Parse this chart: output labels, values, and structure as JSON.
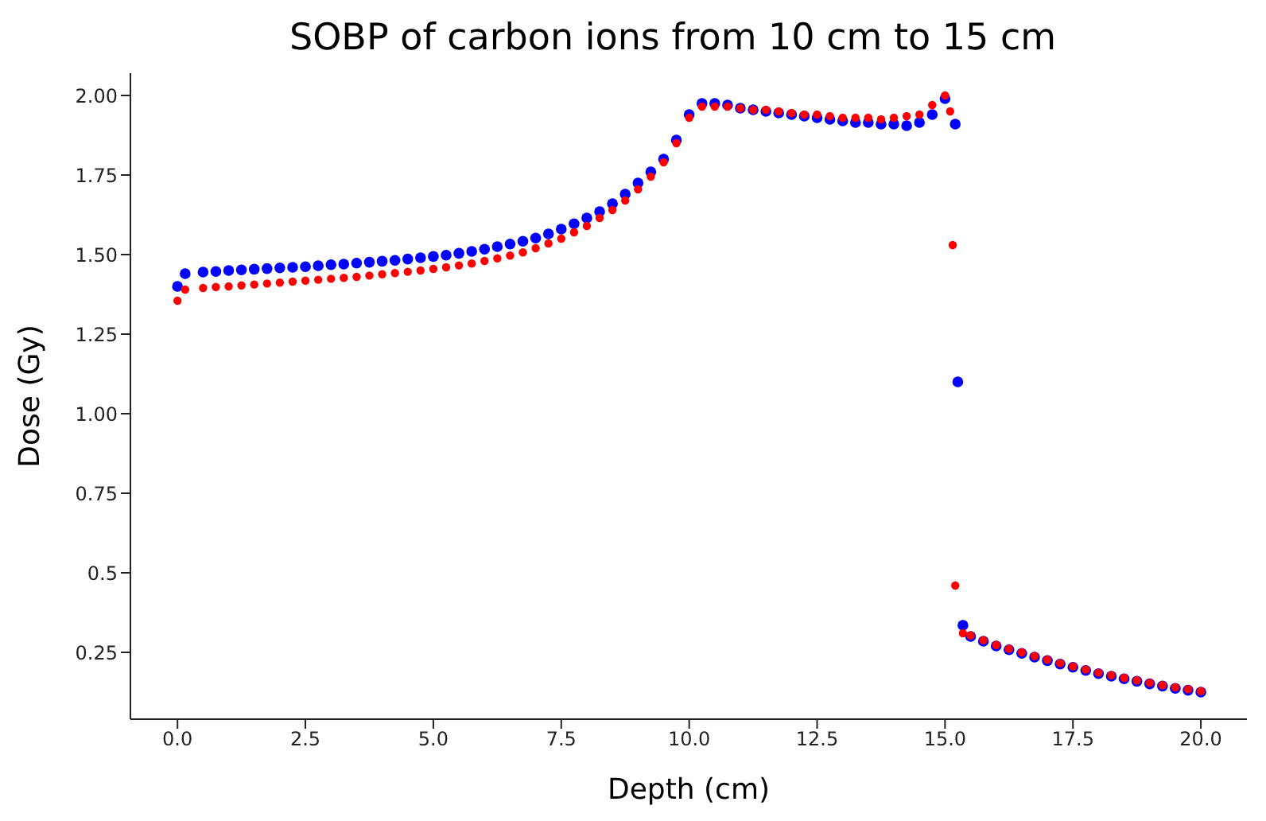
{
  "chart_data": {
    "type": "scatter",
    "title": "SOBP of carbon ions from 10 cm to 15 cm",
    "xlabel": "Depth (cm)",
    "ylabel": "Dose (Gy)",
    "xlim": [
      -0.92,
      20.9
    ],
    "ylim": [
      0.04,
      2.07
    ],
    "xticks": [
      {
        "value": 0,
        "label": "0.0"
      },
      {
        "value": 2.5,
        "label": "2.5"
      },
      {
        "value": 5,
        "label": "5.0"
      },
      {
        "value": 7.5,
        "label": "7.5"
      },
      {
        "value": 10,
        "label": "10.0"
      },
      {
        "value": 12.5,
        "label": "12.5"
      },
      {
        "value": 15,
        "label": "15.0"
      },
      {
        "value": 17.5,
        "label": "17.5"
      },
      {
        "value": 20,
        "label": "20.0"
      }
    ],
    "yticks": [
      0.25,
      0.5,
      0.75,
      {
        "value": 1,
        "label": "1.00"
      },
      1.25,
      {
        "value": 1.5,
        "label": "1.50"
      },
      1.75,
      {
        "value": 2,
        "label": "2.00"
      }
    ],
    "grid": false,
    "legend": false,
    "marker": "circle",
    "series": [
      {
        "color": "#0000ff",
        "x": [
          0,
          0.15,
          0.5,
          0.75,
          1,
          1.25,
          1.5,
          1.75,
          2,
          2.25,
          2.5,
          2.75,
          3,
          3.25,
          3.5,
          3.75,
          4,
          4.25,
          4.5,
          4.75,
          5,
          5.25,
          5.5,
          5.75,
          6,
          6.25,
          6.5,
          6.75,
          7,
          7.25,
          7.5,
          7.75,
          8,
          8.25,
          8.5,
          8.75,
          9,
          9.25,
          9.5,
          9.75,
          10,
          10.25,
          10.5,
          10.75,
          11,
          11.25,
          11.5,
          11.75,
          12,
          12.25,
          12.5,
          12.75,
          13,
          13.25,
          13.5,
          13.75,
          14,
          14.25,
          14.5,
          14.75,
          15,
          15.2,
          15.25,
          15.35,
          15.5,
          15.75,
          16,
          16.25,
          16.5,
          16.75,
          17,
          17.25,
          17.5,
          17.75,
          18,
          18.25,
          18.5,
          18.75,
          19,
          19.25,
          19.5,
          19.75,
          20
        ],
        "values": [
          1.4,
          1.44,
          1.445,
          1.447,
          1.45,
          1.452,
          1.454,
          1.456,
          1.458,
          1.46,
          1.462,
          1.465,
          1.468,
          1.47,
          1.473,
          1.476,
          1.479,
          1.482,
          1.486,
          1.49,
          1.494,
          1.498,
          1.504,
          1.51,
          1.517,
          1.525,
          1.533,
          1.542,
          1.552,
          1.565,
          1.58,
          1.597,
          1.615,
          1.635,
          1.66,
          1.69,
          1.725,
          1.76,
          1.8,
          1.86,
          1.94,
          1.975,
          1.975,
          1.97,
          1.96,
          1.955,
          1.95,
          1.945,
          1.94,
          1.935,
          1.93,
          1.925,
          1.92,
          1.915,
          1.915,
          1.91,
          1.91,
          1.905,
          1.915,
          1.94,
          1.99,
          1.91,
          1.1,
          0.335,
          0.3,
          0.285,
          0.27,
          0.258,
          0.247,
          0.235,
          0.224,
          0.213,
          0.203,
          0.193,
          0.183,
          0.175,
          0.167,
          0.159,
          0.151,
          0.144,
          0.137,
          0.131,
          0.125
        ]
      },
      {
        "color": "#ff0000",
        "x": [
          0,
          0.15,
          0.5,
          0.75,
          1,
          1.25,
          1.5,
          1.75,
          2,
          2.25,
          2.5,
          2.75,
          3,
          3.25,
          3.5,
          3.75,
          4,
          4.25,
          4.5,
          4.75,
          5,
          5.25,
          5.5,
          5.75,
          6,
          6.25,
          6.5,
          6.75,
          7,
          7.25,
          7.5,
          7.75,
          8,
          8.25,
          8.5,
          8.75,
          9,
          9.25,
          9.5,
          9.75,
          10,
          10.25,
          10.5,
          10.75,
          11,
          11.25,
          11.5,
          11.75,
          12,
          12.25,
          12.5,
          12.75,
          13,
          13.25,
          13.5,
          13.75,
          14,
          14.25,
          14.5,
          14.75,
          15,
          15.1,
          15.15,
          15.2,
          15.35,
          15.5,
          15.75,
          16,
          16.25,
          16.5,
          16.75,
          17,
          17.25,
          17.5,
          17.75,
          18,
          18.25,
          18.5,
          18.75,
          19,
          19.25,
          19.5,
          19.75,
          20
        ],
        "values": [
          1.355,
          1.39,
          1.395,
          1.398,
          1.4,
          1.403,
          1.406,
          1.409,
          1.412,
          1.415,
          1.418,
          1.421,
          1.424,
          1.427,
          1.43,
          1.434,
          1.438,
          1.442,
          1.446,
          1.45,
          1.455,
          1.46,
          1.466,
          1.472,
          1.48,
          1.488,
          1.497,
          1.507,
          1.52,
          1.535,
          1.55,
          1.57,
          1.59,
          1.615,
          1.64,
          1.67,
          1.705,
          1.745,
          1.79,
          1.85,
          1.93,
          1.965,
          1.965,
          1.965,
          1.96,
          1.955,
          1.955,
          1.95,
          1.945,
          1.94,
          1.94,
          1.935,
          1.93,
          1.93,
          1.93,
          1.925,
          1.93,
          1.935,
          1.94,
          1.97,
          2,
          1.95,
          1.53,
          0.46,
          0.31,
          0.303,
          0.288,
          0.273,
          0.261,
          0.25,
          0.238,
          0.227,
          0.216,
          0.206,
          0.196,
          0.186,
          0.178,
          0.17,
          0.162,
          0.154,
          0.147,
          0.14,
          0.134,
          0.128
        ]
      }
    ]
  }
}
